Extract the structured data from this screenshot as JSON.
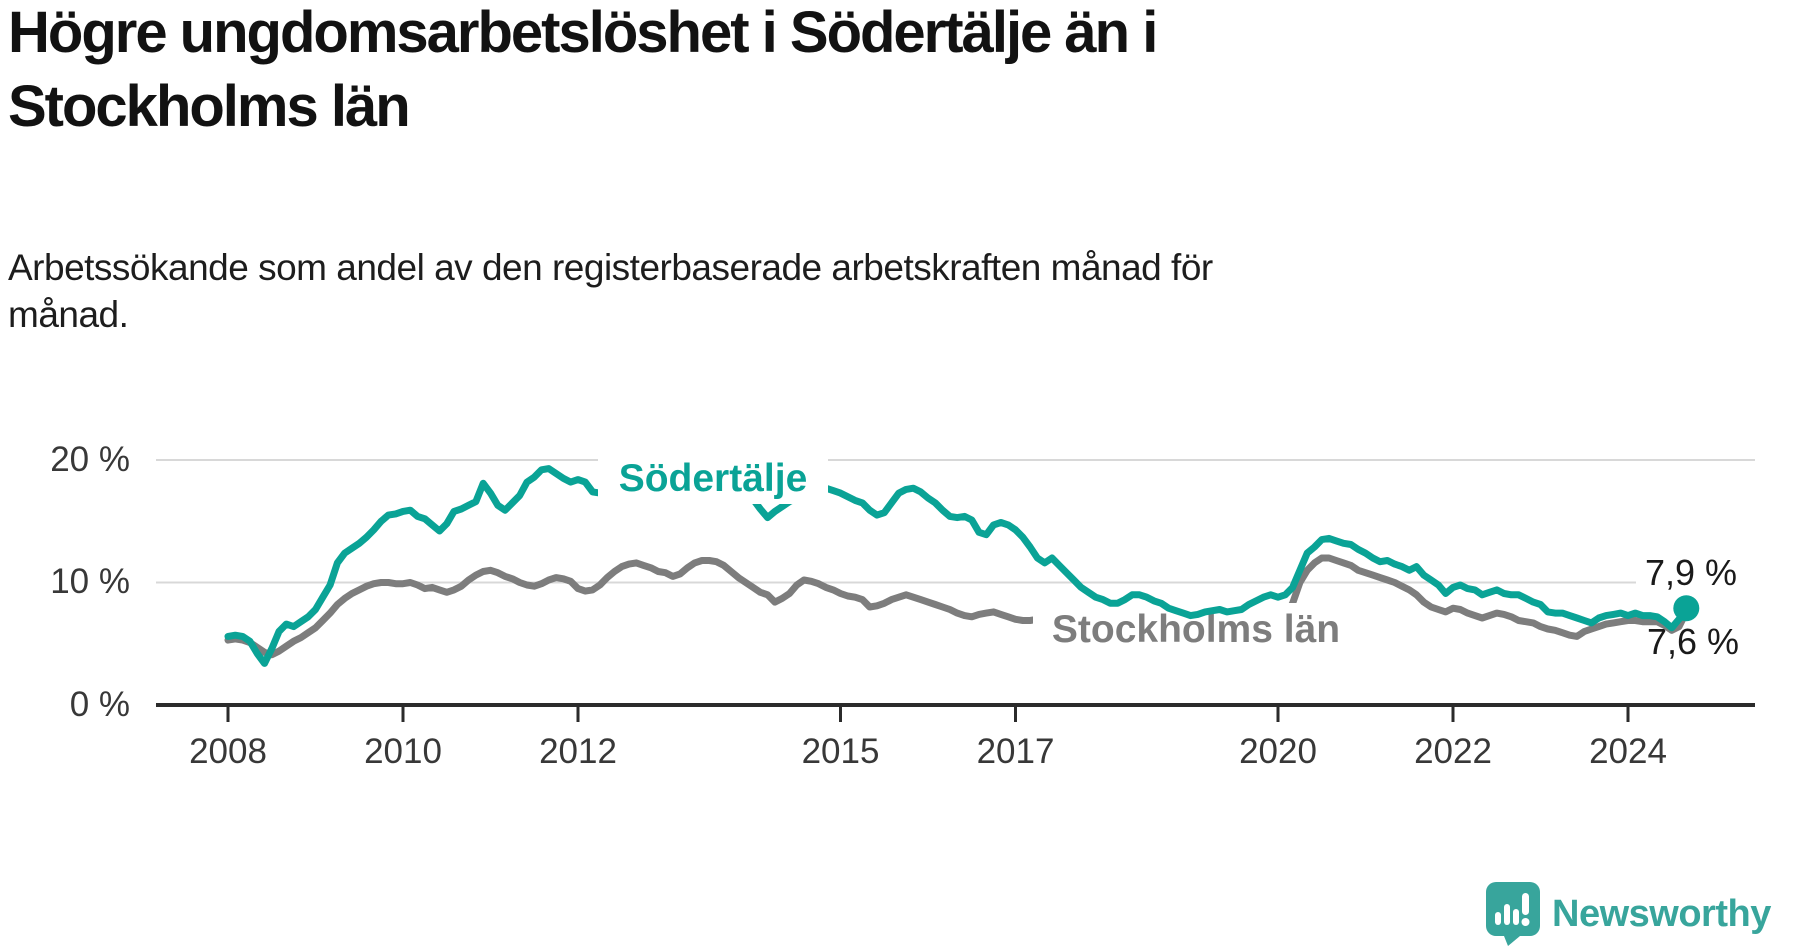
{
  "title": {
    "line1": "Högre ungdomsarbetslöshet i Södertälje än i",
    "line2": "Stockholms län"
  },
  "subtitle": {
    "line1": "Arbetssökande som andel av den registerbaserade arbetskraften månad för",
    "line2": "månad."
  },
  "branding": {
    "logo_text": "Newsworthy",
    "logo_color": "#38a59c"
  },
  "chart_data": {
    "type": "line",
    "title": "Högre ungdomsarbetslöshet i Södertälje än i Stockholms län",
    "unit": "percent of registered labour force, monthly",
    "x_axis": {
      "start_year": 2008,
      "start_month": 1,
      "end_year": 2024,
      "end_month": 9,
      "tick_years": [
        2008,
        2010,
        2012,
        2015,
        2017,
        2020,
        2022,
        2024
      ]
    },
    "y_axis": {
      "range": [
        0,
        22
      ],
      "ticks": [
        {
          "value": 20,
          "label": "20 %"
        },
        {
          "value": 10,
          "label": "10 %"
        },
        {
          "value": 0,
          "label": "0 %"
        }
      ]
    },
    "grid": "horizontal",
    "legend": "inline-labels",
    "series": [
      {
        "name": "Södertälje",
        "color": "#0aa396",
        "end_label": "7,9 %",
        "end_value": 7.9,
        "values": [
          5.6,
          5.7,
          5.6,
          5.2,
          4.2,
          3.4,
          4.6,
          6.0,
          6.6,
          6.4,
          6.8,
          7.2,
          7.8,
          8.8,
          9.8,
          11.6,
          12.4,
          12.8,
          13.2,
          13.7,
          14.3,
          15.0,
          15.5,
          15.6,
          15.8,
          15.9,
          15.4,
          15.2,
          14.7,
          14.2,
          14.8,
          15.8,
          16.0,
          16.3,
          16.6,
          18.1,
          17.3,
          16.3,
          15.9,
          16.5,
          17.1,
          18.2,
          18.6,
          19.2,
          19.3,
          18.9,
          18.5,
          18.2,
          18.4,
          18.2,
          17.4,
          17.3,
          17.7,
          18.0,
          17.8,
          17.6,
          17.1,
          16.9,
          17.0,
          17.2,
          17.2,
          17.4,
          17.5,
          17.3,
          17.2,
          17.0,
          17.1,
          17.3,
          17.2,
          17.0,
          17.1,
          17.0,
          16.8,
          16.0,
          15.3,
          15.8,
          16.2,
          16.6,
          16.9,
          17.2,
          17.4,
          17.6,
          17.7,
          17.5,
          17.3,
          17.0,
          16.7,
          16.5,
          15.9,
          15.5,
          15.7,
          16.5,
          17.3,
          17.6,
          17.7,
          17.4,
          16.9,
          16.5,
          15.9,
          15.4,
          15.3,
          15.4,
          15.1,
          14.1,
          13.9,
          14.7,
          14.9,
          14.7,
          14.3,
          13.7,
          12.9,
          12.0,
          11.6,
          12.0,
          11.4,
          10.8,
          10.2,
          9.6,
          9.2,
          8.8,
          8.6,
          8.3,
          8.3,
          8.6,
          9.0,
          9.0,
          8.8,
          8.5,
          8.3,
          7.9,
          7.7,
          7.5,
          7.3,
          7.4,
          7.6,
          7.7,
          7.8,
          7.6,
          7.7,
          7.8,
          8.2,
          8.5,
          8.8,
          9.0,
          8.8,
          9.0,
          9.6,
          11.0,
          12.4,
          12.9,
          13.5,
          13.6,
          13.4,
          13.2,
          13.1,
          12.7,
          12.4,
          12.0,
          11.7,
          11.8,
          11.5,
          11.3,
          11.0,
          11.3,
          10.6,
          10.2,
          9.8,
          9.1,
          9.6,
          9.8,
          9.5,
          9.4,
          9.0,
          9.2,
          9.4,
          9.1,
          9.0,
          9.0,
          8.7,
          8.4,
          8.2,
          7.6,
          7.5,
          7.5,
          7.3,
          7.1,
          6.9,
          6.7,
          7.1,
          7.3,
          7.4,
          7.5,
          7.3,
          7.5,
          7.3,
          7.3,
          7.2,
          6.8,
          6.3,
          7.0,
          7.9
        ]
      },
      {
        "name": "Stockholms län",
        "color": "#7d7d7d",
        "end_label": "7,6 %",
        "end_value": 7.6,
        "values": [
          5.3,
          5.4,
          5.3,
          5.1,
          4.7,
          4.3,
          4.1,
          4.4,
          4.8,
          5.2,
          5.5,
          5.9,
          6.3,
          6.9,
          7.5,
          8.2,
          8.7,
          9.1,
          9.4,
          9.7,
          9.9,
          10.0,
          10.0,
          9.9,
          9.9,
          10.0,
          9.8,
          9.5,
          9.6,
          9.4,
          9.2,
          9.4,
          9.7,
          10.2,
          10.6,
          10.9,
          11.0,
          10.8,
          10.5,
          10.3,
          10.0,
          9.8,
          9.7,
          9.9,
          10.2,
          10.4,
          10.3,
          10.1,
          9.5,
          9.3,
          9.4,
          9.8,
          10.4,
          10.9,
          11.3,
          11.5,
          11.6,
          11.4,
          11.2,
          10.9,
          10.8,
          10.5,
          10.7,
          11.2,
          11.6,
          11.8,
          11.8,
          11.7,
          11.4,
          10.9,
          10.4,
          10.0,
          9.6,
          9.2,
          9.0,
          8.4,
          8.7,
          9.1,
          9.8,
          10.2,
          10.1,
          9.9,
          9.6,
          9.4,
          9.1,
          8.9,
          8.8,
          8.6,
          8.0,
          8.1,
          8.3,
          8.6,
          8.8,
          9.0,
          8.8,
          8.6,
          8.4,
          8.2,
          8.0,
          7.8,
          7.5,
          7.3,
          7.2,
          7.4,
          7.5,
          7.6,
          7.4,
          7.2,
          7.0,
          6.9,
          6.9,
          7.0,
          7.1,
          7.0,
          6.9,
          6.8,
          6.7,
          6.6,
          6.5,
          6.4,
          6.3,
          6.2,
          6.2,
          6.3,
          6.4,
          6.4,
          6.3,
          6.2,
          6.1,
          6.0,
          6.0,
          6.1,
          6.1,
          6.2,
          6.3,
          6.4,
          6.4,
          6.5,
          6.5,
          6.6,
          6.7,
          6.8,
          6.9,
          7.0,
          7.0,
          7.2,
          8.3,
          10.0,
          11.0,
          11.6,
          12.0,
          12.0,
          11.8,
          11.6,
          11.4,
          11.0,
          10.8,
          10.6,
          10.4,
          10.2,
          10.0,
          9.7,
          9.4,
          9.0,
          8.4,
          8.0,
          7.8,
          7.6,
          7.9,
          7.8,
          7.5,
          7.3,
          7.1,
          7.3,
          7.5,
          7.4,
          7.2,
          6.9,
          6.8,
          6.7,
          6.4,
          6.2,
          6.1,
          5.9,
          5.7,
          5.6,
          6.0,
          6.2,
          6.4,
          6.6,
          6.7,
          6.8,
          6.9,
          6.9,
          6.8,
          6.8,
          6.8,
          6.5,
          6.1,
          6.4,
          7.6
        ]
      }
    ]
  }
}
